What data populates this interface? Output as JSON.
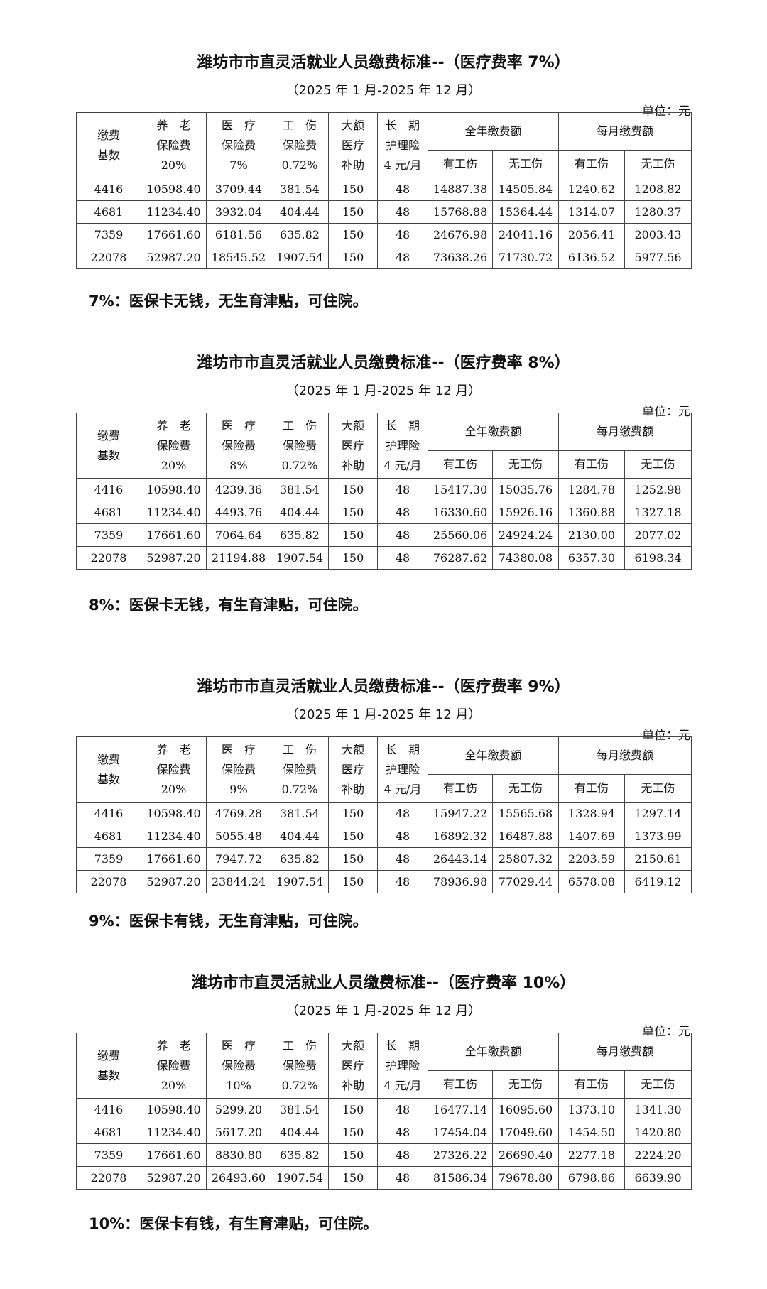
{
  "unit_label": "单位：元",
  "subtitle": "（2025 年 1 月-2025 年 12 月）",
  "header": {
    "base": "缴费基数",
    "pension": [
      "养　老",
      "保险费",
      "20%"
    ],
    "medical_prefix": [
      "医　疗",
      "保险费"
    ],
    "injury": [
      "工　伤",
      "保险费",
      "0.72%"
    ],
    "major_medical": [
      "大额",
      "医疗",
      "补助"
    ],
    "long_term_care": [
      "长　期",
      "护理险",
      "4 元/月"
    ],
    "annual_total": "全年缴费额",
    "monthly_total": "每月缴费额",
    "with_injury": "有工伤",
    "without_injury": "无工伤"
  },
  "tables": [
    {
      "title": "潍坊市市直灵活就业人员缴费标准--（医疗费率 7%）",
      "medical_rate": "7%",
      "note": "7%：医保卡无钱，无生育津贴，可住院。",
      "rows": [
        [
          "4416",
          "10598.40",
          "3709.44",
          "381.54",
          "150",
          "48",
          "14887.38",
          "14505.84",
          "1240.62",
          "1208.82"
        ],
        [
          "4681",
          "11234.40",
          "3932.04",
          "404.44",
          "150",
          "48",
          "15768.88",
          "15364.44",
          "1314.07",
          "1280.37"
        ],
        [
          "7359",
          "17661.60",
          "6181.56",
          "635.82",
          "150",
          "48",
          "24676.98",
          "24041.16",
          "2056.41",
          "2003.43"
        ],
        [
          "22078",
          "52987.20",
          "18545.52",
          "1907.54",
          "150",
          "48",
          "73638.26",
          "71730.72",
          "6136.52",
          "5977.56"
        ]
      ]
    },
    {
      "title": "潍坊市市直灵活就业人员缴费标准--（医疗费率 8%）",
      "medical_rate": "8%",
      "note": "8%：医保卡无钱，有生育津贴，可住院。",
      "rows": [
        [
          "4416",
          "10598.40",
          "4239.36",
          "381.54",
          "150",
          "48",
          "15417.30",
          "15035.76",
          "1284.78",
          "1252.98"
        ],
        [
          "4681",
          "11234.40",
          "4493.76",
          "404.44",
          "150",
          "48",
          "16330.60",
          "15926.16",
          "1360.88",
          "1327.18"
        ],
        [
          "7359",
          "17661.60",
          "7064.64",
          "635.82",
          "150",
          "48",
          "25560.06",
          "24924.24",
          "2130.00",
          "2077.02"
        ],
        [
          "22078",
          "52987.20",
          "21194.88",
          "1907.54",
          "150",
          "48",
          "76287.62",
          "74380.08",
          "6357.30",
          "6198.34"
        ]
      ]
    },
    {
      "title": "潍坊市市直灵活就业人员缴费标准--（医疗费率 9%）",
      "medical_rate": "9%",
      "note": "9%：医保卡有钱，无生育津贴，可住院。",
      "rows": [
        [
          "4416",
          "10598.40",
          "4769.28",
          "381.54",
          "150",
          "48",
          "15947.22",
          "15565.68",
          "1328.94",
          "1297.14"
        ],
        [
          "4681",
          "11234.40",
          "5055.48",
          "404.44",
          "150",
          "48",
          "16892.32",
          "16487.88",
          "1407.69",
          "1373.99"
        ],
        [
          "7359",
          "17661.60",
          "7947.72",
          "635.82",
          "150",
          "48",
          "26443.14",
          "25807.32",
          "2203.59",
          "2150.61"
        ],
        [
          "22078",
          "52987.20",
          "23844.24",
          "1907.54",
          "150",
          "48",
          "78936.98",
          "77029.44",
          "6578.08",
          "6419.12"
        ]
      ]
    },
    {
      "title": "潍坊市市直灵活就业人员缴费标准--（医疗费率 10%）",
      "medical_rate": "10%",
      "note": "10%：医保卡有钱，有生育津贴，可住院。",
      "rows": [
        [
          "4416",
          "10598.40",
          "5299.20",
          "381.54",
          "150",
          "48",
          "16477.14",
          "16095.60",
          "1373.10",
          "1341.30"
        ],
        [
          "4681",
          "11234.40",
          "5617.20",
          "404.44",
          "150",
          "48",
          "17454.04",
          "17049.60",
          "1454.50",
          "1420.80"
        ],
        [
          "7359",
          "17661.60",
          "8830.80",
          "635.82",
          "150",
          "48",
          "27326.22",
          "26690.40",
          "2277.18",
          "2224.20"
        ],
        [
          "22078",
          "52987.20",
          "26493.60",
          "1907.54",
          "150",
          "48",
          "81586.34",
          "79678.80",
          "6798.86",
          "6639.90"
        ]
      ]
    }
  ]
}
